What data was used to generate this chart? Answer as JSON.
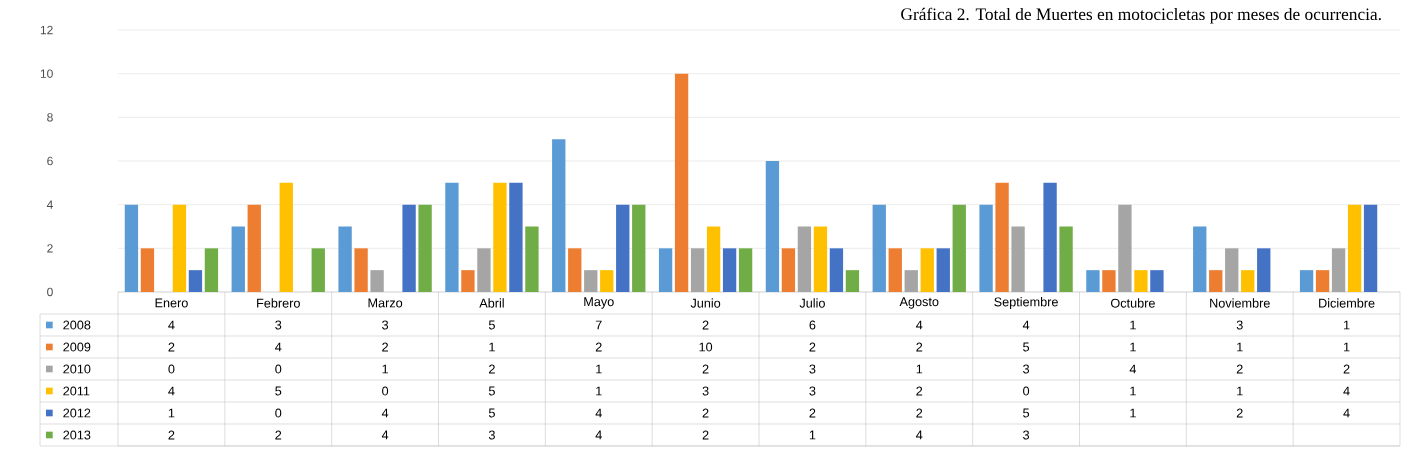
{
  "chart_data": {
    "type": "bar",
    "title": "Gráfica 2. Total de Muertes en motocicletas por meses de ocurrencia.",
    "categories": [
      "Enero",
      "Febrero",
      "Marzo",
      "Abril",
      "Mayo",
      "Junio",
      "Julio",
      "Agosto",
      "Septiembre",
      "Octubre",
      "Noviembre",
      "Diciembre"
    ],
    "series": [
      {
        "name": "2008",
        "color": "#5b9bd5",
        "values": [
          4,
          3,
          3,
          5,
          7,
          2,
          6,
          4,
          4,
          1,
          3,
          1
        ]
      },
      {
        "name": "2009",
        "color": "#ed7d31",
        "values": [
          2,
          4,
          2,
          1,
          2,
          10,
          2,
          2,
          5,
          1,
          1,
          1
        ]
      },
      {
        "name": "2010",
        "color": "#a5a5a5",
        "values": [
          0,
          0,
          1,
          2,
          1,
          2,
          3,
          1,
          3,
          4,
          2,
          2
        ]
      },
      {
        "name": "2011",
        "color": "#ffc000",
        "values": [
          4,
          5,
          0,
          5,
          1,
          3,
          3,
          2,
          0,
          1,
          1,
          4
        ]
      },
      {
        "name": "2012",
        "color": "#4472c4",
        "values": [
          1,
          0,
          4,
          5,
          4,
          2,
          2,
          2,
          5,
          1,
          2,
          4
        ]
      },
      {
        "name": "2013",
        "color": "#70ad47",
        "values": [
          2,
          2,
          4,
          3,
          4,
          2,
          1,
          4,
          3,
          null,
          null,
          null
        ]
      }
    ],
    "ylim": [
      0,
      12
    ],
    "yticks": [
      0,
      2,
      4,
      6,
      8,
      10,
      12
    ],
    "grid": "y",
    "legend": "bottom",
    "data_labels": true
  }
}
